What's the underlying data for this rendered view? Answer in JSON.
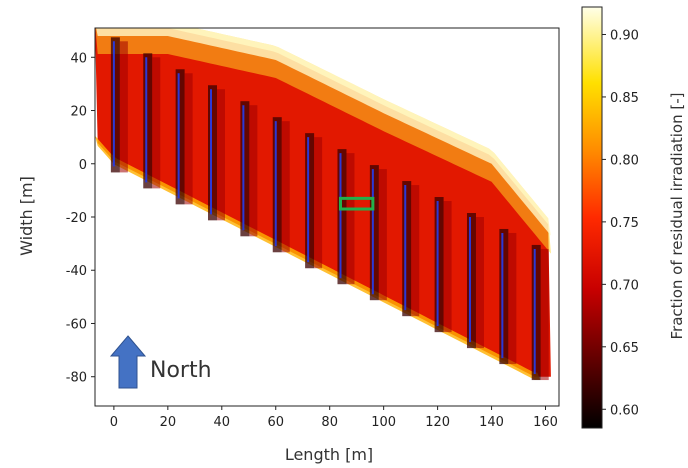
{
  "chart_data": {
    "type": "heatmap",
    "xlabel": "Length [m]",
    "ylabel": "Width [m]",
    "xlim": [
      -7,
      165
    ],
    "ylim": [
      -91,
      51
    ],
    "xticks": [
      0,
      20,
      40,
      60,
      80,
      100,
      120,
      140,
      160
    ],
    "yticks": [
      40,
      20,
      0,
      -20,
      -40,
      -60,
      -80
    ],
    "colorbar": {
      "label": "Fraction of residual irradiation [-]",
      "ticks": [
        0.9,
        0.85,
        0.8,
        0.75,
        0.7,
        0.65,
        0.6
      ],
      "range": [
        0.585,
        0.922
      ],
      "colormap": "hot"
    },
    "rows": [
      {
        "x": 0,
        "y_top": 46,
        "y_bottom": -1
      },
      {
        "x": 12,
        "y_top": 40,
        "y_bottom": -7
      },
      {
        "x": 24,
        "y_top": 34,
        "y_bottom": -13
      },
      {
        "x": 36,
        "y_top": 28,
        "y_bottom": -19
      },
      {
        "x": 48,
        "y_top": 22,
        "y_bottom": -25
      },
      {
        "x": 60,
        "y_top": 16,
        "y_bottom": -31
      },
      {
        "x": 72,
        "y_top": 10,
        "y_bottom": -37
      },
      {
        "x": 84,
        "y_top": 4,
        "y_bottom": -43
      },
      {
        "x": 96,
        "y_top": -2,
        "y_bottom": -49
      },
      {
        "x": 108,
        "y_top": -8,
        "y_bottom": -55
      },
      {
        "x": 120,
        "y_top": -14,
        "y_bottom": -61
      },
      {
        "x": 132,
        "y_top": -20,
        "y_bottom": -67
      },
      {
        "x": 144,
        "y_top": -26,
        "y_bottom": -73
      },
      {
        "x": 156,
        "y_top": -32,
        "y_bottom": -79
      }
    ],
    "field_edges": {
      "top": [
        [
          -7,
          51
        ],
        [
          20,
          51
        ],
        [
          60,
          42
        ],
        [
          100,
          22
        ],
        [
          140,
          3
        ],
        [
          162,
          -24
        ]
      ],
      "bottom": [
        [
          -7,
          9
        ],
        [
          0,
          1
        ],
        [
          156,
          -80
        ]
      ]
    },
    "highlight_box": {
      "x0": 84,
      "x1": 96,
      "y0": -17,
      "y1": -13,
      "color": "#22b14c"
    },
    "north_arrow": {
      "label": "North",
      "color": "#4472c4"
    }
  }
}
